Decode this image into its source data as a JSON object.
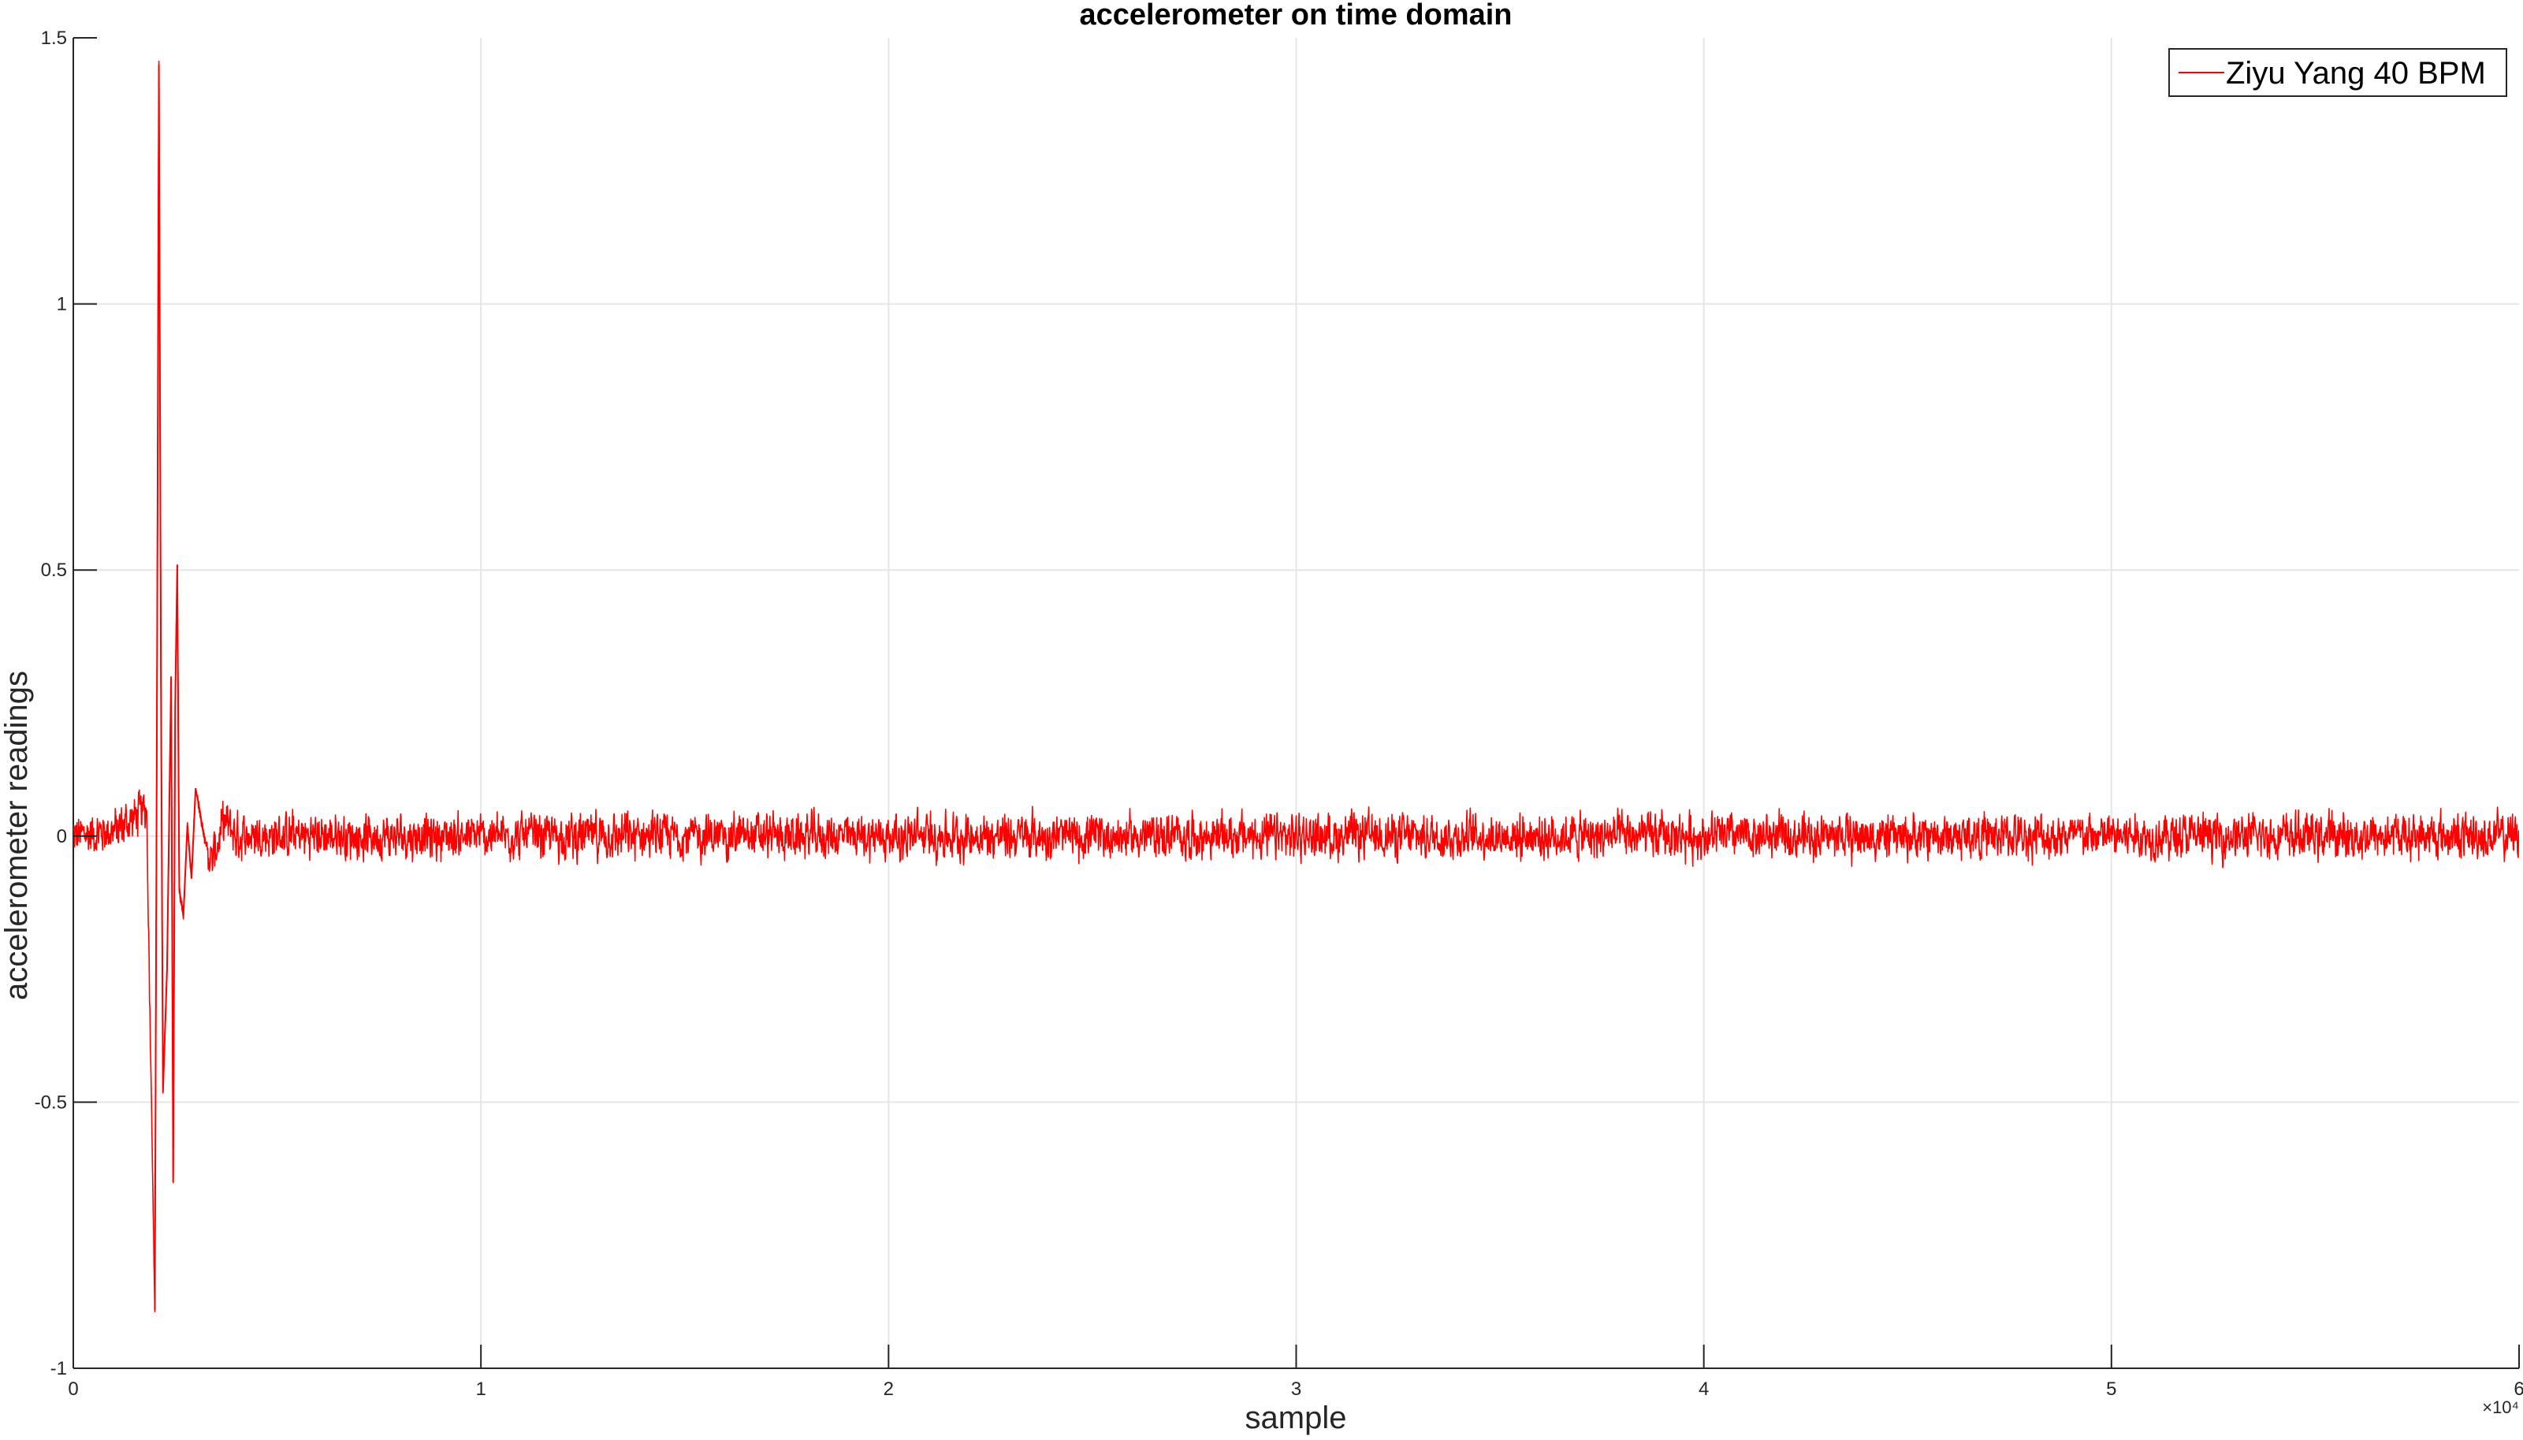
{
  "chart_data": {
    "type": "line",
    "title": "accelerometer on time domain",
    "xlabel": "sample",
    "ylabel": "accelerometer readings",
    "xlim": [
      0,
      60000
    ],
    "ylim": [
      -1,
      1.5
    ],
    "x_ticks": [
      0,
      10000,
      20000,
      30000,
      40000,
      50000,
      60000
    ],
    "x_tick_labels": [
      "0",
      "1",
      "2",
      "3",
      "4",
      "5",
      "6"
    ],
    "x_exponent_label": "×10⁴",
    "y_ticks": [
      -1,
      -0.5,
      0,
      0.5,
      1,
      1.5
    ],
    "y_tick_labels": [
      "-1",
      "-0.5",
      "0",
      "0.5",
      "1",
      "1.5"
    ],
    "grid": true,
    "legend_position": "top-right",
    "series": [
      {
        "name": "Ziyu Yang 40 BPM",
        "color": "#ff0000",
        "noise_amplitude": 0.05,
        "x": [
          0,
          1000,
          1800,
          2000,
          2050,
          2100,
          2150,
          2200,
          2300,
          2400,
          2450,
          2500,
          2550,
          2600,
          2700,
          2800,
          2900,
          3000,
          3100,
          3200,
          3400,
          3700,
          4000,
          5000,
          10000,
          20000,
          30000,
          40000,
          50000,
          60000
        ],
        "y": [
          0.0,
          0.01,
          0.05,
          -0.89,
          0.2,
          1.45,
          0.3,
          -0.48,
          -0.25,
          0.3,
          -0.65,
          0.25,
          0.51,
          -0.1,
          -0.15,
          0.02,
          -0.08,
          0.09,
          0.05,
          0.0,
          -0.05,
          0.03,
          0.0,
          0.0,
          0.0,
          0.0,
          0.0,
          0.0,
          0.0,
          0.0
        ]
      }
    ]
  }
}
